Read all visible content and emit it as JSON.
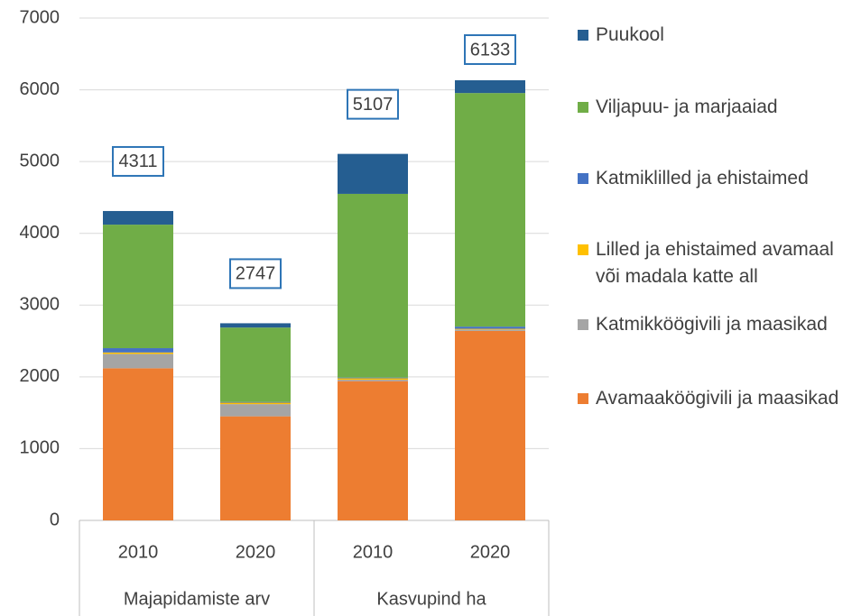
{
  "chart_data": {
    "type": "stacked_bar",
    "categories": [
      "2010",
      "2020",
      "2010",
      "2020"
    ],
    "groups": [
      "Majapidamiste arv",
      "Kasvupind ha"
    ],
    "series": [
      {
        "name": "Avamaaköögivili ja maasikad",
        "color": "#ed7d31",
        "values": [
          2120,
          1450,
          1940,
          2640
        ]
      },
      {
        "name": "Katmikköögivili ja maasikad",
        "color": "#a5a5a5",
        "values": [
          200,
          170,
          20,
          20
        ]
      },
      {
        "name": "Lilled ja ehistaimed avamaal\nvõi madala katte all",
        "color": "#ffc000",
        "values": [
          20,
          20,
          20,
          10
        ]
      },
      {
        "name": "Katmiklilled ja ehistaimed",
        "color": "#4472c4",
        "values": [
          60,
          10,
          10,
          30
        ]
      },
      {
        "name": "Viljapuu- ja marjaaiad",
        "color": "#70ad47",
        "values": [
          1721,
          1037,
          2560,
          3255
        ]
      },
      {
        "name": "Puukool",
        "color": "#255e91",
        "values": [
          190,
          60,
          557,
          178
        ]
      }
    ],
    "totals": [
      4311,
      2747,
      5107,
      6133
    ],
    "ylim": [
      0,
      7000
    ],
    "yticks": [
      0,
      1000,
      2000,
      3000,
      4000,
      5000,
      6000,
      7000
    ],
    "grid": true
  }
}
